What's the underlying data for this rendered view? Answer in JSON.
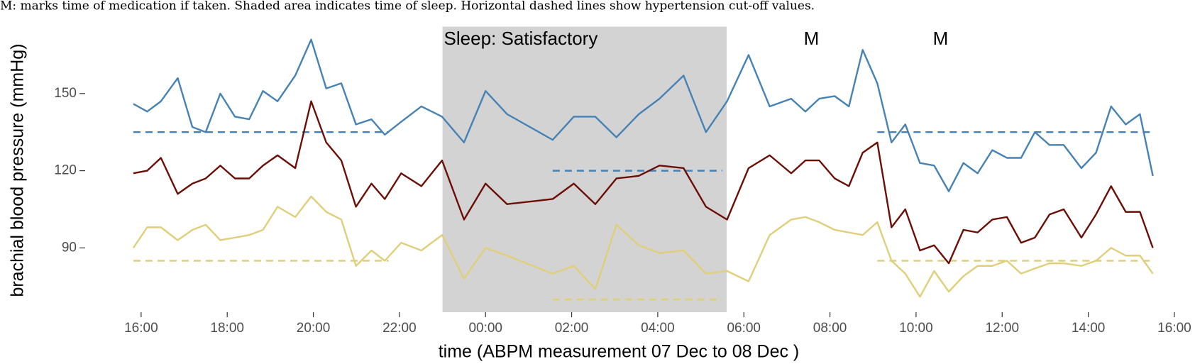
{
  "caption": "M: marks time of medication if taken. Shaded area indicates time of sleep. Horizontal dashed lines show hypertension cut-off values.",
  "chart_data": {
    "type": "line",
    "xlabel": "time (ABPM measurement 07 Dec to 08 Dec )",
    "ylabel": "brachial blood pressure (mmHg)",
    "x": [
      15.82,
      16.14,
      16.46,
      16.85,
      17.19,
      17.5,
      17.84,
      18.18,
      18.51,
      18.83,
      19.17,
      19.58,
      19.95,
      20.3,
      20.65,
      20.99,
      21.35,
      21.66,
      22.04,
      22.51,
      22.99,
      23.5,
      24.0,
      24.5,
      25.56,
      26.05,
      26.55,
      27.04,
      27.56,
      28.04,
      28.6,
      29.12,
      29.61,
      30.11,
      30.6,
      31.1,
      31.43,
      31.75,
      32.11,
      32.44,
      32.76,
      33.1,
      33.43,
      33.75,
      34.09,
      34.42,
      34.76,
      35.1,
      35.43,
      35.77,
      36.11,
      36.44,
      36.76,
      37.1,
      37.43,
      37.84,
      38.18,
      38.53,
      38.87,
      39.2,
      39.5
    ],
    "series": [
      {
        "color": "#4682b4",
        "values": [
          146,
          143,
          147,
          156,
          137,
          135,
          150,
          141,
          140,
          151,
          147,
          157,
          171,
          152,
          154,
          138,
          140,
          134,
          139,
          145,
          141,
          131,
          151,
          142,
          132,
          141,
          141,
          133,
          142,
          148,
          157,
          135,
          147,
          165,
          145,
          148,
          143,
          148,
          149,
          145,
          167,
          154,
          131,
          138,
          123,
          122,
          112,
          123,
          119,
          128,
          125,
          125,
          135,
          130,
          130,
          121,
          127,
          145,
          138,
          142,
          118
        ]
      },
      {
        "color": "#6b0e06",
        "values": [
          119,
          120,
          125,
          111,
          115,
          117,
          122,
          117,
          117,
          122,
          126,
          121,
          147,
          131,
          124,
          106,
          115,
          109,
          119,
          114,
          124,
          101,
          115,
          107,
          109,
          115,
          107,
          117,
          118,
          122,
          121,
          106,
          101,
          121,
          126,
          119,
          124,
          124,
          117,
          114,
          127,
          131,
          98,
          105,
          89,
          91,
          84,
          97,
          96,
          101,
          102,
          92,
          94,
          103,
          105,
          94,
          103,
          114,
          104,
          104,
          90
        ]
      },
      {
        "color": "#e0cf7a",
        "values": [
          90,
          98,
          98,
          93,
          97,
          99,
          93,
          94,
          95,
          97,
          106,
          102,
          110,
          104,
          101,
          83,
          89,
          85,
          92,
          89,
          95,
          78,
          90,
          87,
          80,
          83,
          74,
          99,
          91,
          88,
          89,
          80,
          81,
          77,
          95,
          101,
          102,
          100,
          97,
          96,
          95,
          100,
          85,
          80,
          71,
          81,
          73,
          79,
          83,
          83,
          85,
          80,
          82,
          84,
          84,
          83,
          85,
          90,
          87,
          87,
          80
        ]
      }
    ],
    "xlim": [
      14.7,
      40.1
    ],
    "xticks": [
      {
        "value": 16,
        "label": "16:00"
      },
      {
        "value": 18,
        "label": "18:00"
      },
      {
        "value": 20,
        "label": "20:00"
      },
      {
        "value": 22,
        "label": "22:00"
      },
      {
        "value": 24,
        "label": "00:00"
      },
      {
        "value": 26,
        "label": "02:00"
      },
      {
        "value": 28,
        "label": "04:00"
      },
      {
        "value": 30,
        "label": "06:00"
      },
      {
        "value": 32,
        "label": "08:00"
      },
      {
        "value": 34,
        "label": "10:00"
      },
      {
        "value": 36,
        "label": "12:00"
      },
      {
        "value": 38,
        "label": "14:00"
      },
      {
        "value": 40,
        "label": "16:00"
      }
    ],
    "ylim": [
      65,
      176
    ],
    "yticks": [
      90,
      120,
      150
    ],
    "grid": false,
    "shading": {
      "x": [
        23.0,
        29.6
      ],
      "label": "Sleep: Satisfactory",
      "color": "#d3d3d3"
    },
    "annotations": [
      {
        "text": "M",
        "x": 31.57
      },
      {
        "text": "M",
        "x": 34.57
      }
    ],
    "cutoffs": [
      {
        "color": "#4682b4",
        "y": 135,
        "x": [
          15.82,
          21.75
        ]
      },
      {
        "color": "#4682b4",
        "y": 120,
        "x": [
          25.56,
          29.5
        ]
      },
      {
        "color": "#4682b4",
        "y": 135,
        "x": [
          33.1,
          39.5
        ]
      },
      {
        "color": "#e0cf7a",
        "y": 85,
        "x": [
          15.82,
          21.75
        ]
      },
      {
        "color": "#e0cf7a",
        "y": 70,
        "x": [
          25.56,
          29.5
        ]
      },
      {
        "color": "#e0cf7a",
        "y": 85,
        "x": [
          33.1,
          39.5
        ]
      }
    ]
  }
}
